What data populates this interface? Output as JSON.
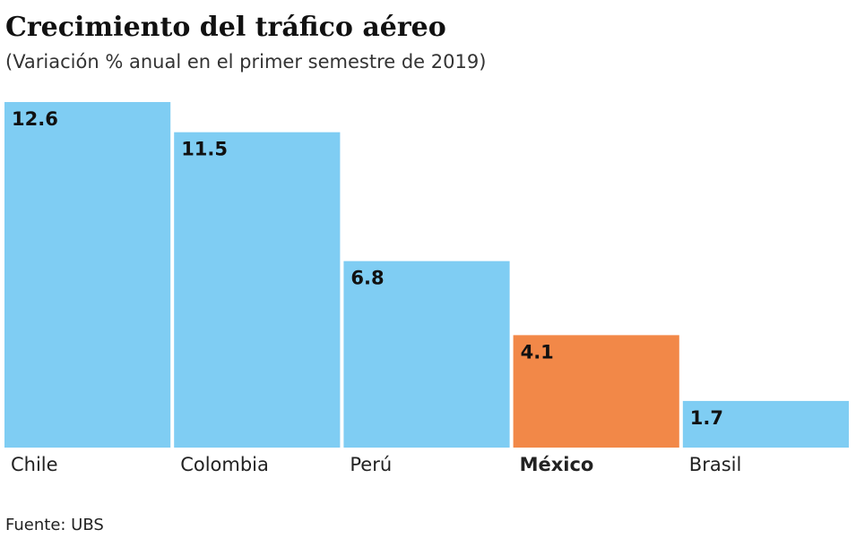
{
  "chart_data": {
    "type": "bar",
    "title": "Crecimiento del tráfico aéreo",
    "subtitle": "(Variación % anual en el primer semestre de 2019)",
    "categories": [
      "Chile",
      "Colombia",
      "Perú",
      "México",
      "Brasil"
    ],
    "values": [
      12.6,
      11.5,
      6.8,
      4.1,
      1.7
    ],
    "colors": [
      "#7fcdf3",
      "#7fcdf3",
      "#7fcdf3",
      "#f28848",
      "#7fcdf3"
    ],
    "highlight": 3,
    "source": "Fuente: UBS"
  }
}
